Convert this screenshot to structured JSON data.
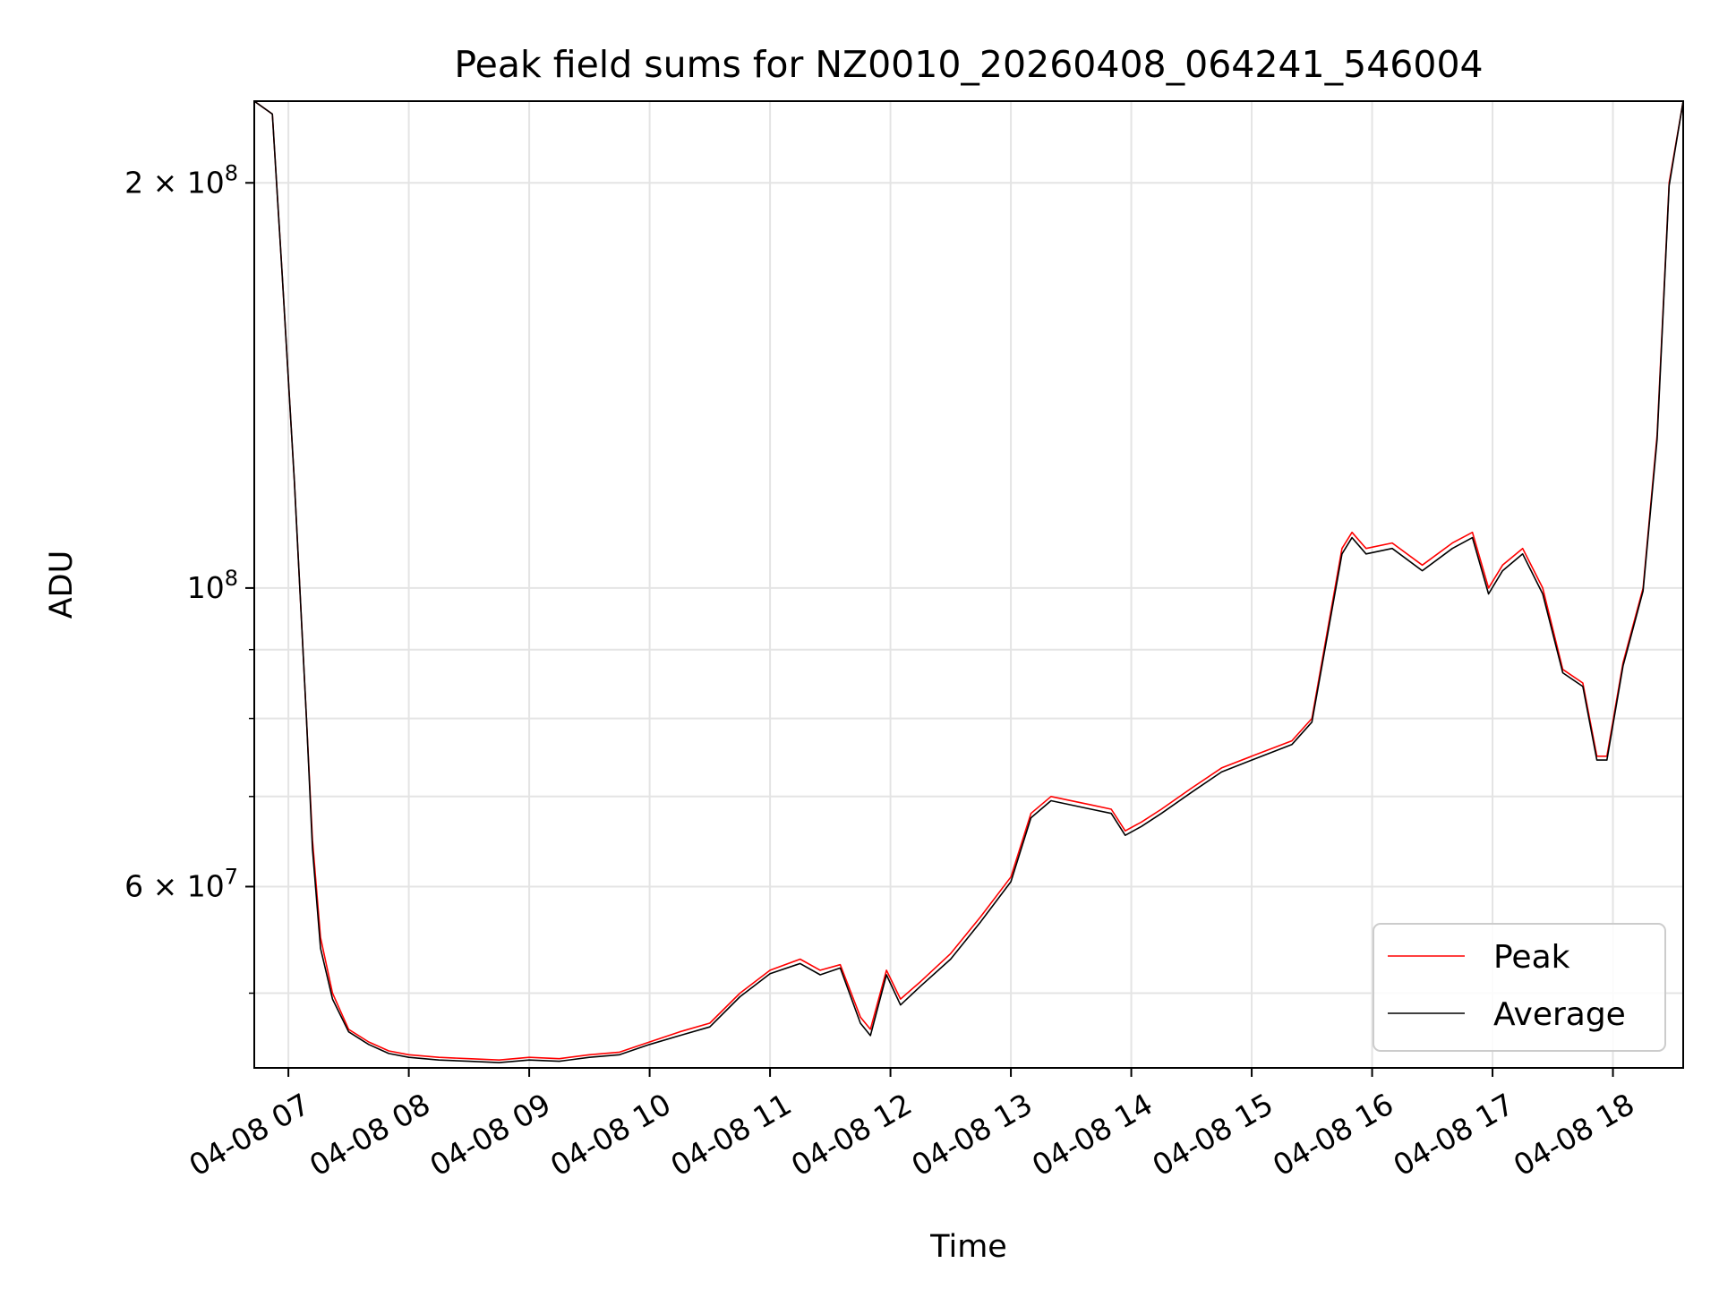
{
  "chart_data": {
    "type": "line",
    "title": "Peak field sums for NZ0010_20260408_064241_546004",
    "xlabel": "Time",
    "ylabel": "ADU",
    "y_scale": "log",
    "ylim": [
      44000000,
      230000000
    ],
    "xlim": [
      "2026-04-08T06:43",
      "2026-04-08T18:35"
    ],
    "x_ticks": [
      "04-08 07",
      "04-08 08",
      "04-08 09",
      "04-08 10",
      "04-08 11",
      "04-08 12",
      "04-08 13",
      "04-08 14",
      "04-08 15",
      "04-08 16",
      "04-08 17",
      "04-08 18"
    ],
    "y_tick_labels": [
      "2 × 10^8",
      "10^8",
      "6 × 10^7"
    ],
    "grid": true,
    "legend_position": "lower-right",
    "series": [
      {
        "name": "Peak",
        "color": "#ff0000",
        "x": [
          "06:43",
          "06:52",
          "06:57",
          "07:03",
          "07:09",
          "07:12",
          "07:16",
          "07:22",
          "07:30",
          "07:40",
          "07:50",
          "08:00",
          "08:15",
          "08:30",
          "08:45",
          "09:00",
          "09:15",
          "09:30",
          "09:45",
          "10:00",
          "10:15",
          "10:30",
          "10:45",
          "11:00",
          "11:15",
          "11:25",
          "11:35",
          "11:45",
          "11:50",
          "11:58",
          "12:05",
          "12:15",
          "12:30",
          "12:45",
          "13:00",
          "13:10",
          "13:20",
          "13:40",
          "13:50",
          "13:57",
          "14:05",
          "14:15",
          "14:30",
          "14:45",
          "15:00",
          "15:20",
          "15:30",
          "15:45",
          "15:50",
          "15:57",
          "16:10",
          "16:25",
          "16:40",
          "16:50",
          "16:58",
          "17:05",
          "17:15",
          "17:25",
          "17:35",
          "17:45",
          "17:52",
          "17:57",
          "18:05",
          "18:15",
          "18:22",
          "18:28",
          "18:35"
        ],
        "y": [
          230000000,
          225000000,
          170000000,
          120000000,
          80000000,
          65000000,
          55000000,
          50000000,
          47000000,
          46000000,
          45300000,
          45000000,
          44800000,
          44700000,
          44600000,
          44800000,
          44700000,
          45000000,
          45200000,
          46000000,
          46800000,
          47500000,
          50000000,
          52000000,
          53000000,
          52000000,
          52500000,
          48000000,
          47000000,
          52000000,
          49500000,
          51000000,
          53500000,
          57000000,
          61000000,
          68000000,
          70000000,
          69000000,
          68500000,
          66000000,
          67000000,
          68500000,
          71000000,
          73500000,
          75000000,
          77000000,
          80000000,
          107000000,
          110000000,
          107000000,
          108000000,
          104000000,
          108000000,
          110000000,
          100000000,
          104000000,
          107000000,
          100000000,
          87000000,
          85000000,
          75000000,
          75000000,
          88000000,
          100000000,
          130000000,
          200000000,
          230000000
        ]
      },
      {
        "name": "Average",
        "color": "#000000",
        "x": [
          "06:43",
          "06:52",
          "06:57",
          "07:03",
          "07:09",
          "07:12",
          "07:16",
          "07:22",
          "07:30",
          "07:40",
          "07:50",
          "08:00",
          "08:15",
          "08:30",
          "08:45",
          "09:00",
          "09:15",
          "09:30",
          "09:45",
          "10:00",
          "10:15",
          "10:30",
          "10:45",
          "11:00",
          "11:15",
          "11:25",
          "11:35",
          "11:45",
          "11:50",
          "11:58",
          "12:05",
          "12:15",
          "12:30",
          "12:45",
          "13:00",
          "13:10",
          "13:20",
          "13:40",
          "13:50",
          "13:57",
          "14:05",
          "14:15",
          "14:30",
          "14:45",
          "15:00",
          "15:20",
          "15:30",
          "15:45",
          "15:50",
          "15:57",
          "16:10",
          "16:25",
          "16:40",
          "16:50",
          "16:58",
          "17:05",
          "17:15",
          "17:25",
          "17:35",
          "17:45",
          "17:52",
          "17:57",
          "18:05",
          "18:15",
          "18:22",
          "18:28",
          "18:35"
        ],
        "y": [
          230000000,
          225000000,
          170000000,
          120000000,
          80000000,
          64000000,
          54000000,
          49500000,
          46800000,
          45800000,
          45100000,
          44800000,
          44600000,
          44500000,
          44400000,
          44600000,
          44500000,
          44800000,
          45000000,
          45800000,
          46500000,
          47200000,
          49700000,
          51700000,
          52600000,
          51600000,
          52200000,
          47500000,
          46500000,
          51600000,
          49000000,
          50600000,
          53000000,
          56500000,
          60500000,
          67500000,
          69500000,
          68500000,
          68000000,
          65500000,
          66500000,
          68000000,
          70500000,
          73000000,
          74500000,
          76500000,
          79500000,
          106000000,
          109000000,
          106000000,
          107000000,
          103000000,
          107000000,
          109000000,
          99000000,
          103000000,
          106000000,
          99000000,
          86500000,
          84500000,
          74500000,
          74500000,
          87500000,
          99500000,
          129000000,
          199000000,
          230000000
        ]
      }
    ]
  }
}
